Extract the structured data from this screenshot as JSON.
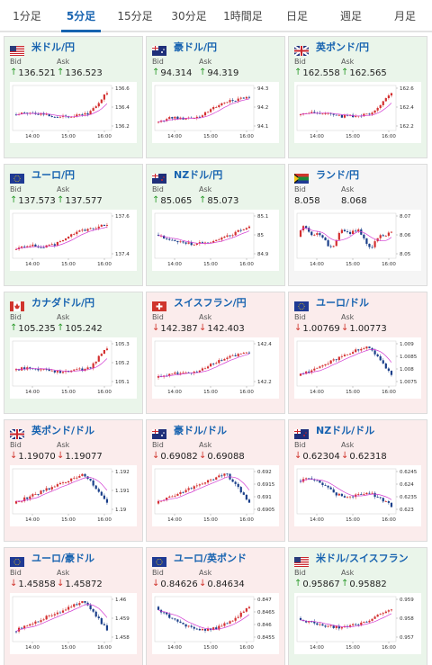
{
  "tabs": [
    {
      "id": "1min",
      "label": "1分足",
      "active": false
    },
    {
      "id": "5min",
      "label": "5分足",
      "active": true
    },
    {
      "id": "15min",
      "label": "15分足",
      "active": false
    },
    {
      "id": "30min",
      "label": "30分足",
      "active": false
    },
    {
      "id": "1hour",
      "label": "1時間足",
      "active": false
    },
    {
      "id": "daily",
      "label": "日足",
      "active": false
    },
    {
      "id": "weekly",
      "label": "週足",
      "active": false
    },
    {
      "id": "monthly",
      "label": "月足",
      "active": false
    }
  ],
  "colors": {
    "up_bg": "#eaf5ea",
    "down_bg": "#fbecec",
    "neutral_bg": "#f5f5f5",
    "bull": "#d32f2f",
    "bear": "#1a3f8a",
    "ma": "#d23bd2",
    "link": "#1763b0"
  },
  "labels": {
    "bid": "Bid",
    "ask": "Ask"
  },
  "pairs": [
    {
      "id": "usdjpy",
      "name": "米ドル/円",
      "flag": "us",
      "trend": "up",
      "bid": "136.521",
      "ask": "136.523",
      "yticks": [
        "136.6",
        "136.4",
        "136.2"
      ],
      "xticks": [
        "14:00",
        "15:00",
        "16:00"
      ],
      "pattern": "rise_end"
    },
    {
      "id": "audjpy",
      "name": "豪ドル/円",
      "flag": "au",
      "trend": "up",
      "bid": "94.314",
      "ask": "94.319",
      "yticks": [
        "94.3",
        "94.2",
        "94.1"
      ],
      "xticks": [
        "14:00",
        "15:00",
        "16:00"
      ],
      "pattern": "rise"
    },
    {
      "id": "gbpjpy",
      "name": "英ポンド/円",
      "flag": "gb",
      "trend": "up",
      "bid": "162.558",
      "ask": "162.565",
      "yticks": [
        "162.6",
        "162.4",
        "162.2"
      ],
      "xticks": [
        "14:00",
        "15:00",
        "16:00"
      ],
      "pattern": "rise_end"
    },
    {
      "id": "eurjpy",
      "name": "ユーロ/円",
      "flag": "eu",
      "trend": "up",
      "bid": "137.573",
      "ask": "137.577",
      "yticks": [
        "137.6",
        "137.4"
      ],
      "xticks": [
        "14:00",
        "15:00",
        "16:00"
      ],
      "pattern": "rise"
    },
    {
      "id": "nzdjpy",
      "name": "NZドル/円",
      "flag": "nz",
      "trend": "up",
      "bid": "85.065",
      "ask": "85.073",
      "yticks": [
        "85.1",
        "85",
        "84.9"
      ],
      "xticks": [
        "14:00",
        "15:00",
        "16:00"
      ],
      "pattern": "dip_rise"
    },
    {
      "id": "zarjpy",
      "name": "ランド/円",
      "flag": "za",
      "trend": "neutral",
      "bid": "8.058",
      "ask": "8.068",
      "yticks": [
        "8.07",
        "8.06",
        "8.05"
      ],
      "xticks": [
        "14:00",
        "15:00",
        "16:00"
      ],
      "pattern": "choppy"
    },
    {
      "id": "cadjpy",
      "name": "カナダドル/円",
      "flag": "ca",
      "trend": "up",
      "bid": "105.235",
      "ask": "105.242",
      "yticks": [
        "105.3",
        "105.2",
        "105.1"
      ],
      "xticks": [
        "14:00",
        "15:00",
        "16:00"
      ],
      "pattern": "rise_end"
    },
    {
      "id": "chfjpy",
      "name": "スイスフラン/円",
      "flag": "ch",
      "trend": "down",
      "bid": "142.387",
      "ask": "142.403",
      "yticks": [
        "142.4",
        "142.2"
      ],
      "xticks": [
        "14:00",
        "15:00",
        "16:00"
      ],
      "pattern": "rise"
    },
    {
      "id": "eurusd",
      "name": "ユーロ/ドル",
      "flag": "eu",
      "trend": "down",
      "bid": "1.00769",
      "ask": "1.00773",
      "yticks": [
        "1.009",
        "1.0085",
        "1.008",
        "1.0075"
      ],
      "xticks": [
        "14:00",
        "15:00",
        "16:00"
      ],
      "pattern": "rise_drop"
    },
    {
      "id": "gbpusd",
      "name": "英ポンド/ドル",
      "flag": "gb",
      "trend": "down",
      "bid": "1.19070",
      "ask": "1.19077",
      "yticks": [
        "1.192",
        "1.191",
        "1.19"
      ],
      "xticks": [
        "14:00",
        "15:00",
        "16:00"
      ],
      "pattern": "rise_drop"
    },
    {
      "id": "audusd",
      "name": "豪ドル/ドル",
      "flag": "au",
      "trend": "down",
      "bid": "0.69082",
      "ask": "0.69088",
      "yticks": [
        "0.692",
        "0.6915",
        "0.691",
        "0.6905"
      ],
      "xticks": [
        "14:00",
        "15:00",
        "16:00"
      ],
      "pattern": "rise_drop"
    },
    {
      "id": "nzdusd",
      "name": "NZドル/ドル",
      "flag": "nz",
      "trend": "down",
      "bid": "0.62304",
      "ask": "0.62318",
      "yticks": [
        "0.6245",
        "0.624",
        "0.6235",
        "0.623"
      ],
      "xticks": [
        "14:00",
        "15:00",
        "16:00"
      ],
      "pattern": "fall"
    },
    {
      "id": "euraud",
      "name": "ユーロ/豪ドル",
      "flag": "eu",
      "trend": "down",
      "bid": "1.45858",
      "ask": "1.45872",
      "yticks": [
        "1.46",
        "1.459",
        "1.458"
      ],
      "xticks": [
        "14:00",
        "15:00",
        "16:00"
      ],
      "pattern": "rise_drop"
    },
    {
      "id": "eurgbp",
      "name": "ユーロ/英ポンド",
      "flag": "eu",
      "trend": "down",
      "bid": "0.84626",
      "ask": "0.84634",
      "yticks": [
        "0.847",
        "0.8465",
        "0.846",
        "0.8455"
      ],
      "xticks": [
        "14:00",
        "15:00",
        "16:00"
      ],
      "pattern": "fall_rise"
    },
    {
      "id": "usdchf",
      "name": "米ドル/スイスフラン",
      "flag": "us",
      "trend": "up",
      "bid": "0.95867",
      "ask": "0.95882",
      "yticks": [
        "0.959",
        "0.958",
        "0.957"
      ],
      "xticks": [
        "14:00",
        "15:00",
        "16:00"
      ],
      "pattern": "dip_rise"
    }
  ]
}
